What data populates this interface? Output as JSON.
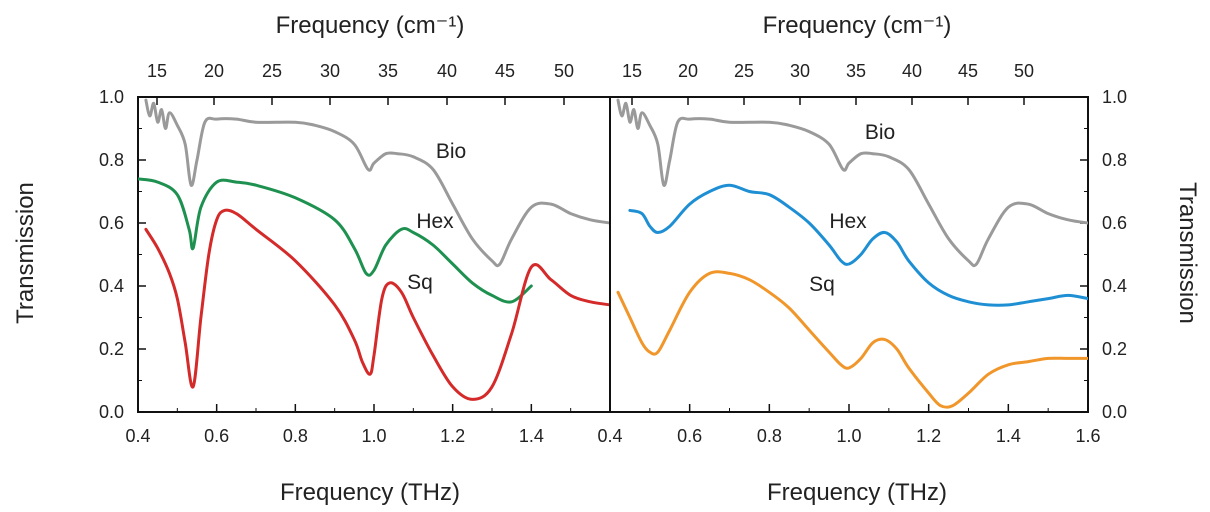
{
  "figure": {
    "top_axis_title": "Frequency (cm⁻¹)",
    "bottom_axis_title": "Frequency (THz)",
    "y_axis_title": "Transmission"
  },
  "chart_data": [
    {
      "type": "line",
      "panel": "left",
      "xlabel": "Frequency (THz)",
      "x2label": "Frequency (cm⁻¹)",
      "ylabel": "Transmission",
      "xlim": [
        0.4,
        1.6
      ],
      "ylim": [
        0.0,
        1.0
      ],
      "x_ticks": [
        "0.4",
        "0.6",
        "0.8",
        "1.0",
        "1.2",
        "1.4"
      ],
      "x2_ticks": [
        "15",
        "20",
        "25",
        "30",
        "35",
        "40",
        "45",
        "50"
      ],
      "y_ticks": [
        "0.0",
        "0.2",
        "0.4",
        "0.6",
        "0.8",
        "1.0"
      ],
      "y_axis_side": "left",
      "grid": false,
      "series": [
        {
          "name": "Bio",
          "color": "#9a9a9a",
          "x": [
            0.42,
            0.43,
            0.44,
            0.45,
            0.46,
            0.47,
            0.48,
            0.5,
            0.52,
            0.535,
            0.55,
            0.57,
            0.6,
            0.65,
            0.7,
            0.8,
            0.85,
            0.9,
            0.95,
            0.985,
            1.0,
            1.03,
            1.06,
            1.1,
            1.15,
            1.2,
            1.25,
            1.3,
            1.32,
            1.35,
            1.4,
            1.45,
            1.5,
            1.55,
            1.6
          ],
          "y": [
            0.99,
            0.94,
            0.98,
            0.92,
            0.96,
            0.9,
            0.95,
            0.91,
            0.85,
            0.72,
            0.8,
            0.92,
            0.93,
            0.93,
            0.92,
            0.92,
            0.91,
            0.89,
            0.85,
            0.77,
            0.79,
            0.82,
            0.82,
            0.81,
            0.77,
            0.66,
            0.55,
            0.48,
            0.47,
            0.55,
            0.65,
            0.66,
            0.63,
            0.61,
            0.6
          ]
        },
        {
          "name": "Hex",
          "color": "#1e9150",
          "x": [
            0.4,
            0.45,
            0.5,
            0.53,
            0.54,
            0.56,
            0.6,
            0.65,
            0.7,
            0.8,
            0.9,
            0.95,
            0.98,
            1.0,
            1.03,
            1.07,
            1.1,
            1.15,
            1.2,
            1.25,
            1.3,
            1.35,
            1.4
          ],
          "y": [
            0.74,
            0.73,
            0.69,
            0.58,
            0.52,
            0.65,
            0.73,
            0.73,
            0.72,
            0.68,
            0.61,
            0.52,
            0.44,
            0.45,
            0.53,
            0.58,
            0.57,
            0.53,
            0.47,
            0.41,
            0.37,
            0.35,
            0.4
          ]
        },
        {
          "name": "Sq",
          "color": "#d42a2a",
          "x": [
            0.42,
            0.45,
            0.48,
            0.5,
            0.52,
            0.54,
            0.56,
            0.58,
            0.6,
            0.62,
            0.65,
            0.7,
            0.8,
            0.9,
            0.95,
            0.97,
            0.99,
            1.0,
            1.02,
            1.04,
            1.07,
            1.1,
            1.15,
            1.2,
            1.25,
            1.3,
            1.35,
            1.4,
            1.45,
            1.5,
            1.55,
            1.6
          ],
          "y": [
            0.58,
            0.52,
            0.44,
            0.36,
            0.22,
            0.08,
            0.3,
            0.5,
            0.61,
            0.64,
            0.63,
            0.58,
            0.48,
            0.34,
            0.23,
            0.16,
            0.12,
            0.18,
            0.36,
            0.41,
            0.38,
            0.3,
            0.18,
            0.08,
            0.04,
            0.08,
            0.25,
            0.46,
            0.42,
            0.37,
            0.35,
            0.34
          ]
        }
      ],
      "annotations": [
        {
          "text": "Bio",
          "x": 1.09,
          "y": 0.82
        },
        {
          "text": "Hex",
          "x": 1.1,
          "y": 0.59
        },
        {
          "text": "Sq",
          "x": 1.07,
          "y": 0.41
        }
      ]
    },
    {
      "type": "line",
      "panel": "right",
      "xlabel": "Frequency (THz)",
      "x2label": "Frequency (cm⁻¹)",
      "ylabel": "Transmission",
      "xlim": [
        0.4,
        1.6
      ],
      "ylim": [
        0.0,
        1.0
      ],
      "x_ticks": [
        "0.4",
        "0.6",
        "0.8",
        "1.0",
        "1.2",
        "1.4",
        "1.6"
      ],
      "x2_ticks": [
        "15",
        "20",
        "25",
        "30",
        "35",
        "40",
        "45",
        "50"
      ],
      "y_ticks": [
        "0.0",
        "0.2",
        "0.4",
        "0.6",
        "0.8",
        "1.0"
      ],
      "y_axis_side": "right",
      "grid": false,
      "series": [
        {
          "name": "Bio",
          "color": "#9a9a9a",
          "x": [
            0.42,
            0.43,
            0.44,
            0.45,
            0.46,
            0.47,
            0.48,
            0.5,
            0.52,
            0.535,
            0.55,
            0.57,
            0.6,
            0.65,
            0.7,
            0.8,
            0.85,
            0.9,
            0.95,
            0.985,
            1.0,
            1.03,
            1.06,
            1.1,
            1.15,
            1.2,
            1.25,
            1.3,
            1.32,
            1.35,
            1.4,
            1.45,
            1.5,
            1.55,
            1.6
          ],
          "y": [
            0.99,
            0.94,
            0.98,
            0.92,
            0.96,
            0.9,
            0.95,
            0.91,
            0.85,
            0.72,
            0.8,
            0.92,
            0.93,
            0.93,
            0.92,
            0.92,
            0.91,
            0.89,
            0.85,
            0.77,
            0.79,
            0.82,
            0.82,
            0.81,
            0.77,
            0.66,
            0.55,
            0.48,
            0.47,
            0.55,
            0.65,
            0.66,
            0.63,
            0.61,
            0.6
          ]
        },
        {
          "name": "Hex",
          "color": "#1f8fd4",
          "x": [
            0.45,
            0.48,
            0.5,
            0.52,
            0.55,
            0.6,
            0.65,
            0.7,
            0.75,
            0.8,
            0.85,
            0.9,
            0.95,
            0.98,
            1.0,
            1.03,
            1.06,
            1.09,
            1.12,
            1.15,
            1.2,
            1.25,
            1.3,
            1.35,
            1.4,
            1.45,
            1.5,
            1.55,
            1.6
          ],
          "y": [
            0.64,
            0.63,
            0.59,
            0.57,
            0.59,
            0.66,
            0.7,
            0.72,
            0.7,
            0.69,
            0.65,
            0.6,
            0.53,
            0.48,
            0.47,
            0.5,
            0.55,
            0.57,
            0.54,
            0.48,
            0.41,
            0.37,
            0.35,
            0.34,
            0.34,
            0.35,
            0.36,
            0.37,
            0.36
          ]
        },
        {
          "name": "Sq",
          "color": "#f0962a",
          "x": [
            0.42,
            0.45,
            0.48,
            0.5,
            0.52,
            0.55,
            0.6,
            0.65,
            0.7,
            0.75,
            0.8,
            0.85,
            0.9,
            0.95,
            0.98,
            1.0,
            1.03,
            1.06,
            1.09,
            1.12,
            1.15,
            1.2,
            1.23,
            1.26,
            1.3,
            1.35,
            1.4,
            1.45,
            1.5,
            1.55,
            1.6
          ],
          "y": [
            0.38,
            0.3,
            0.22,
            0.19,
            0.19,
            0.26,
            0.38,
            0.44,
            0.44,
            0.42,
            0.38,
            0.33,
            0.26,
            0.19,
            0.15,
            0.14,
            0.17,
            0.22,
            0.23,
            0.2,
            0.14,
            0.06,
            0.02,
            0.02,
            0.06,
            0.12,
            0.15,
            0.16,
            0.17,
            0.17,
            0.17
          ]
        }
      ],
      "annotations": [
        {
          "text": "Bio",
          "x": 1.14,
          "y": 0.85
        },
        {
          "text": "Hex",
          "x": 0.99,
          "y": 0.6
        },
        {
          "text": "Sq",
          "x": 0.92,
          "y": 0.4
        }
      ]
    }
  ]
}
